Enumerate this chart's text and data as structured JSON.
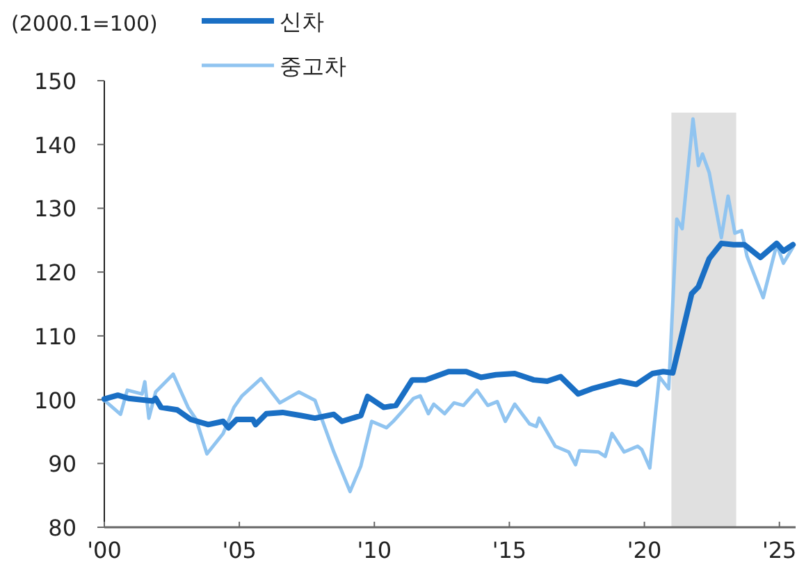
{
  "chart_data": {
    "type": "line",
    "ylabel": "(2000.1=100)",
    "xlim": [
      2000,
      2025.6
    ],
    "ylim": [
      80,
      150
    ],
    "xticks": [
      {
        "value": 2000,
        "label": "'00"
      },
      {
        "value": 2005,
        "label": "'05"
      },
      {
        "value": 2010,
        "label": "'10"
      },
      {
        "value": 2015,
        "label": "'15"
      },
      {
        "value": 2020,
        "label": "'20"
      },
      {
        "value": 2025,
        "label": "'25"
      }
    ],
    "yticks": [
      80,
      90,
      100,
      110,
      120,
      130,
      140,
      150
    ],
    "legend": "top",
    "bands": [
      {
        "axis": "x",
        "from": 2021.0,
        "to": 2023.4,
        "color": "#e0e0e0"
      }
    ],
    "series": [
      {
        "name": "신차",
        "color": "#1a6fc4",
        "x": [
          2000.0,
          2000.5,
          2000.9,
          2001.8,
          2001.9,
          2002.1,
          2002.7,
          2003.2,
          2003.85,
          2004.4,
          2004.6,
          2004.9,
          2005.5,
          2005.6,
          2006.0,
          2006.6,
          2007.3,
          2007.8,
          2008.5,
          2008.8,
          2009.5,
          2009.75,
          2010.35,
          2010.8,
          2011.4,
          2011.9,
          2012.75,
          2013.4,
          2013.95,
          2014.5,
          2015.2,
          2015.9,
          2016.4,
          2016.9,
          2017.55,
          2018.05,
          2019.1,
          2019.7,
          2020.3,
          2020.7,
          2021.05,
          2021.75,
          2022.0,
          2022.4,
          2022.85,
          2023.3,
          2023.7,
          2024.3,
          2024.9,
          2025.15,
          2025.5
        ],
        "values": [
          100.1,
          100.7,
          100.2,
          99.8,
          100.2,
          98.8,
          98.4,
          96.9,
          96.1,
          96.6,
          95.6,
          96.9,
          96.9,
          96.1,
          97.8,
          98.0,
          97.5,
          97.1,
          97.7,
          96.6,
          97.5,
          100.5,
          98.8,
          99.1,
          103.1,
          103.1,
          104.4,
          104.4,
          103.5,
          103.9,
          104.1,
          103.1,
          102.9,
          103.6,
          100.9,
          101.7,
          102.9,
          102.4,
          104.1,
          104.4,
          104.2,
          116.6,
          117.7,
          122.1,
          124.5,
          124.3,
          124.3,
          122.3,
          124.5,
          123.3,
          124.3
        ]
      },
      {
        "name": "중고차",
        "color": "#90c4f0",
        "x": [
          2000.0,
          2000.6,
          2000.85,
          2001.4,
          2001.5,
          2001.65,
          2001.9,
          2002.55,
          2003.1,
          2003.4,
          2003.8,
          2004.4,
          2004.8,
          2005.1,
          2005.8,
          2006.5,
          2007.2,
          2007.8,
          2008.5,
          2009.1,
          2009.5,
          2009.9,
          2010.45,
          2010.7,
          2011.0,
          2011.45,
          2011.7,
          2012.0,
          2012.2,
          2012.6,
          2012.95,
          2013.3,
          2013.8,
          2014.2,
          2014.55,
          2014.85,
          2015.2,
          2015.75,
          2016.0,
          2016.1,
          2016.4,
          2016.7,
          2017.2,
          2017.45,
          2017.6,
          2018.3,
          2018.55,
          2018.8,
          2019.25,
          2019.75,
          2019.9,
          2020.2,
          2020.55,
          2020.9,
          2021.2,
          2021.4,
          2021.8,
          2022.0,
          2022.15,
          2022.4,
          2022.85,
          2023.1,
          2023.35,
          2023.6,
          2023.8,
          2024.4,
          2024.9,
          2025.15,
          2025.5
        ],
        "values": [
          99.9,
          97.7,
          101.5,
          100.9,
          102.8,
          97.1,
          101.2,
          104.0,
          98.8,
          96.9,
          91.5,
          94.7,
          98.8,
          100.6,
          103.3,
          99.5,
          101.2,
          99.9,
          91.8,
          85.6,
          89.6,
          96.6,
          95.6,
          96.6,
          98.0,
          100.2,
          100.6,
          97.8,
          99.3,
          97.8,
          99.5,
          99.1,
          101.5,
          99.1,
          99.7,
          96.6,
          99.3,
          96.2,
          95.8,
          97.1,
          94.9,
          92.7,
          91.8,
          89.8,
          92.0,
          91.8,
          91.1,
          94.7,
          91.8,
          92.7,
          92.2,
          89.3,
          103.6,
          101.7,
          128.3,
          126.8,
          144.0,
          136.7,
          138.5,
          135.6,
          125.4,
          131.9,
          126.1,
          126.5,
          122.5,
          116.0,
          124.3,
          121.4,
          123.9
        ]
      }
    ]
  }
}
